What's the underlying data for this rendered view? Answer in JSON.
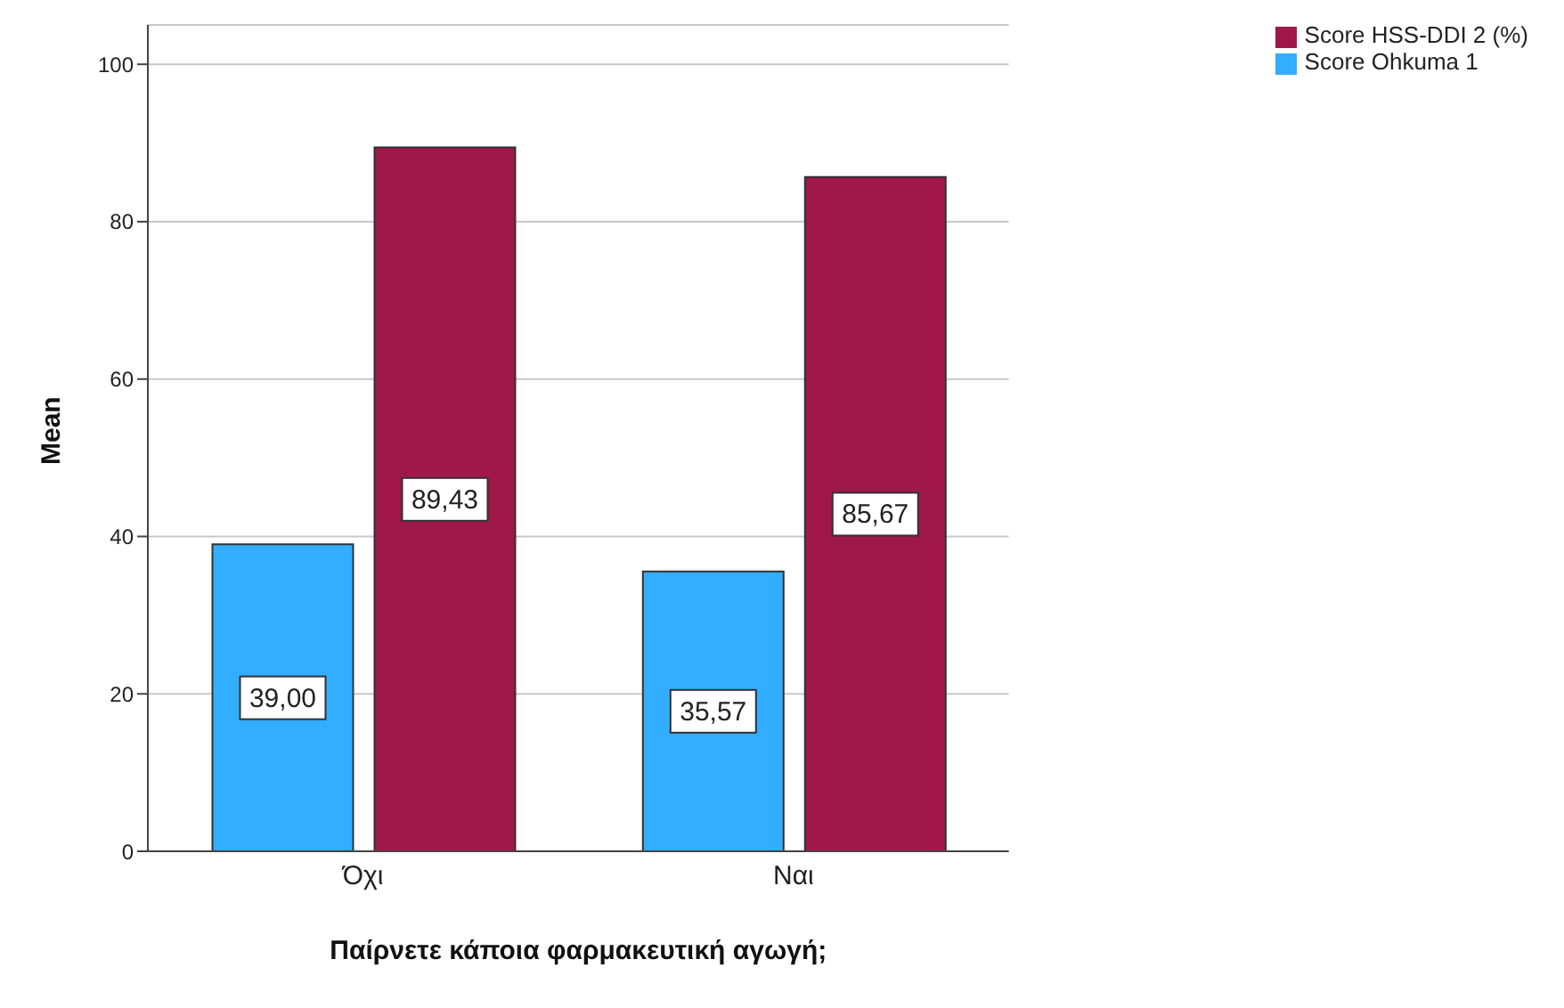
{
  "chart_data": {
    "type": "bar",
    "xlabel": "Παίρνετε κάποια φαρμακευτική αγωγή;",
    "ylabel": "Mean",
    "categories": [
      "Όχι",
      "Ναι"
    ],
    "series": [
      {
        "name": "Score Ohkuma 1",
        "color": "#33adff",
        "values": [
          39.0,
          35.57
        ],
        "value_labels": [
          "39,00",
          "35,57"
        ]
      },
      {
        "name": "Score HSS-DDI 2 (%)",
        "color": "#a0174a",
        "values": [
          89.43,
          85.67
        ],
        "value_labels": [
          "89,43",
          "85,67"
        ]
      }
    ],
    "ylim": [
      0,
      105
    ],
    "yticks": [
      0,
      20,
      40,
      60,
      80,
      100
    ],
    "grid": "y",
    "legend": "top right"
  }
}
